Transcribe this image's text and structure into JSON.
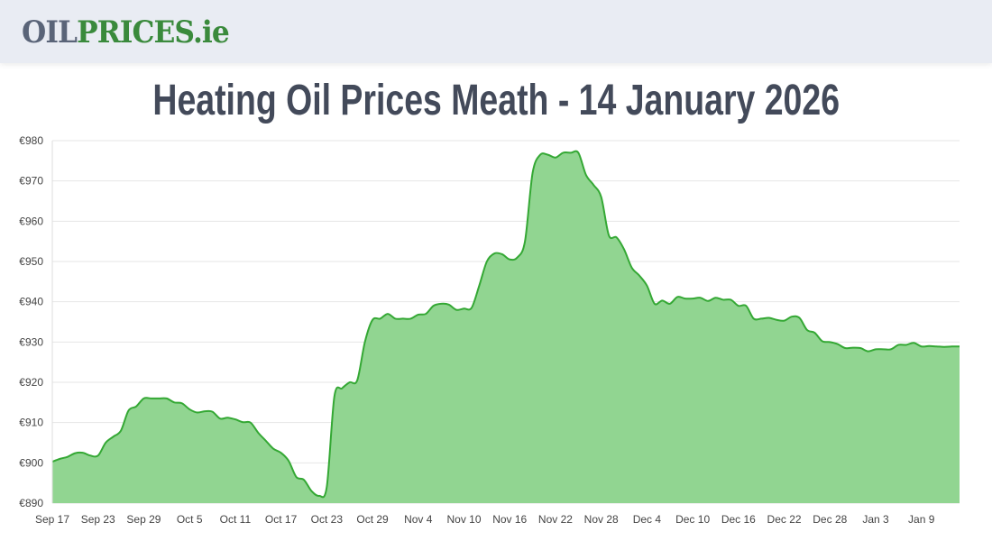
{
  "header": {
    "logo_part1": "OIL",
    "logo_part2": "PRICES.ie"
  },
  "page_title": "Heating Oil Prices Meath - 14 January 2026",
  "colors": {
    "line": "#34a834",
    "fill": "#91d591",
    "grid": "#e6e6e6",
    "title": "#434a5a",
    "logo_gray": "#5a6478",
    "logo_green": "#3a8a3c"
  },
  "chart_data": {
    "type": "area",
    "title": "",
    "xlabel": "",
    "ylabel": "",
    "ylim": [
      890,
      980
    ],
    "grid": true,
    "y_ticks": [
      "€890",
      "€900",
      "€910",
      "€920",
      "€930",
      "€940",
      "€950",
      "€960",
      "€970",
      "€980"
    ],
    "x_ticks": [
      "Sep 17",
      "Sep 23",
      "Sep 29",
      "Oct 5",
      "Oct 11",
      "Oct 17",
      "Oct 23",
      "Oct 29",
      "Nov 4",
      "Nov 10",
      "Nov 16",
      "Nov 22",
      "Nov 28",
      "Dec 4",
      "Dec 10",
      "Dec 16",
      "Dec 22",
      "Dec 28",
      "Jan 3",
      "Jan 9"
    ],
    "x_range": [
      "2025-09-17",
      "2026-01-14"
    ],
    "values": [
      900.3,
      901,
      901.5,
      902.4,
      902.5,
      901.8,
      901.8,
      905,
      906.5,
      908,
      913,
      914,
      916,
      916,
      916,
      916,
      915,
      914.8,
      913.3,
      912.5,
      912.8,
      912.7,
      911,
      911.2,
      910.8,
      910.1,
      910,
      907.5,
      905.5,
      903.5,
      902.5,
      900.5,
      896.5,
      895.8,
      893,
      891.8,
      894,
      916.5,
      918.5,
      920,
      920.5,
      930,
      935.5,
      935.8,
      937,
      935.8,
      935.8,
      935.8,
      936.8,
      937,
      939,
      939.5,
      939.3,
      938,
      938.3,
      938.5,
      944,
      950,
      952,
      951.8,
      950.5,
      951,
      955,
      972,
      976.5,
      976.5,
      975.8,
      977,
      977,
      977,
      971.5,
      969,
      966,
      956.5,
      956,
      953,
      948.5,
      946.5,
      944,
      939.5,
      940.3,
      939.5,
      941.2,
      940.8,
      940.8,
      941,
      940.2,
      941,
      940.5,
      940.5,
      939,
      939,
      935.8,
      935.8,
      936,
      935.5,
      935.3,
      936.3,
      936,
      933,
      932.3,
      930.2,
      930,
      929.5,
      928.5,
      928.6,
      928.5,
      927.7,
      928.2,
      928.2,
      928.2,
      929.3,
      929.3,
      929.8,
      928.9,
      929,
      928.9,
      928.8,
      928.9,
      928.9
    ]
  }
}
